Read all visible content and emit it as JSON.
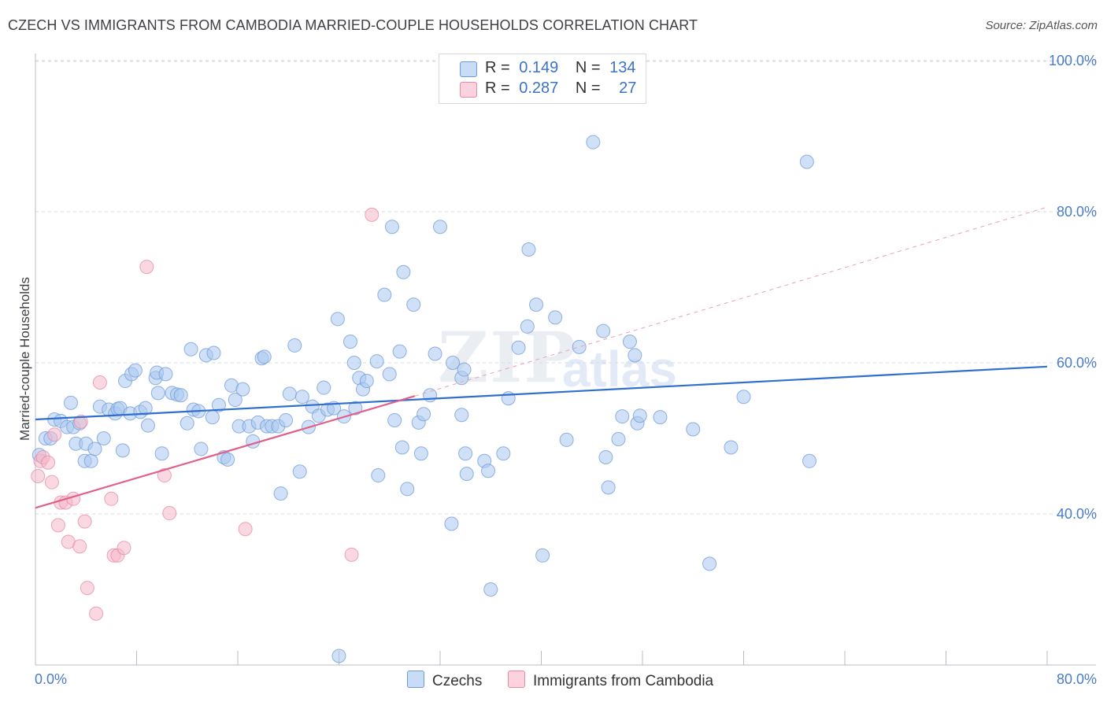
{
  "title": "CZECH VS IMMIGRANTS FROM CAMBODIA MARRIED-COUPLE HOUSEHOLDS CORRELATION CHART",
  "source": "Source: ZipAtlas.com",
  "watermark": {
    "zip": "ZIP",
    "atlas": "atlas"
  },
  "legend": {
    "rows": [
      {
        "r_label": "R =",
        "r_value": "0.149",
        "n_label": "N =",
        "n_value": "134",
        "color": "#aac8f0"
      },
      {
        "r_label": "R =",
        "r_value": "0.287",
        "n_label": "N =",
        "n_value": "27",
        "color": "#f5b8c8"
      }
    ]
  },
  "bottom_legend": [
    {
      "label": "Czechs",
      "color": "#aac8f0"
    },
    {
      "label": "Immigrants from Cambodia",
      "color": "#f5b8c8"
    }
  ],
  "chart_data": {
    "type": "scatter",
    "title": "CZECH VS IMMIGRANTS FROM CAMBODIA MARRIED-COUPLE HOUSEHOLDS CORRELATION CHART",
    "xlabel": "",
    "ylabel": "Married-couple Households",
    "xlim": [
      0,
      80
    ],
    "ylim": [
      20,
      102
    ],
    "x_tick_labels": {
      "min": "0.0%",
      "max": "80.0%"
    },
    "y_ticks": [
      {
        "value": 40,
        "label": "40.0%"
      },
      {
        "value": 60,
        "label": "60.0%"
      },
      {
        "value": 80,
        "label": "80.0%"
      },
      {
        "value": 100,
        "label": "100.0%"
      }
    ],
    "x_gridlines": [
      8,
      16,
      24,
      32,
      40,
      48,
      56,
      64,
      72,
      80
    ],
    "series": [
      {
        "name": "Czechs",
        "color": "#aac8f0",
        "stroke": "#6f9ad8",
        "trend": {
          "x0": 0,
          "y0": 52.5,
          "x1": 80,
          "y1": 59.5,
          "color": "#2f6fd0"
        },
        "points": [
          [
            0.3,
            47.8
          ],
          [
            0.8,
            50.0
          ],
          [
            1.2,
            50.0
          ],
          [
            1.5,
            52.5
          ],
          [
            2.0,
            52.3
          ],
          [
            2.5,
            51.5
          ],
          [
            2.8,
            54.7
          ],
          [
            3.0,
            51.5
          ],
          [
            3.2,
            49.3
          ],
          [
            3.5,
            52.0
          ],
          [
            3.9,
            47.0
          ],
          [
            4.0,
            49.3
          ],
          [
            4.4,
            47.0
          ],
          [
            4.7,
            48.6
          ],
          [
            5.1,
            54.2
          ],
          [
            5.4,
            50.0
          ],
          [
            5.8,
            53.8
          ],
          [
            6.3,
            53.3
          ],
          [
            6.5,
            53.9
          ],
          [
            6.7,
            54.0
          ],
          [
            6.9,
            48.4
          ],
          [
            7.1,
            57.6
          ],
          [
            7.5,
            53.3
          ],
          [
            7.6,
            58.5
          ],
          [
            7.9,
            59.0
          ],
          [
            8.3,
            53.5
          ],
          [
            8.7,
            54.0
          ],
          [
            8.9,
            51.7
          ],
          [
            9.5,
            58.0
          ],
          [
            9.6,
            58.7
          ],
          [
            9.7,
            56.0
          ],
          [
            10.0,
            48.0
          ],
          [
            10.3,
            58.5
          ],
          [
            10.8,
            56.0
          ],
          [
            11.2,
            55.8
          ],
          [
            11.5,
            55.7
          ],
          [
            12.0,
            52.0
          ],
          [
            12.3,
            61.8
          ],
          [
            12.5,
            53.8
          ],
          [
            12.9,
            53.6
          ],
          [
            13.1,
            48.6
          ],
          [
            13.5,
            61.0
          ],
          [
            14.0,
            52.8
          ],
          [
            14.1,
            61.3
          ],
          [
            14.5,
            54.4
          ],
          [
            14.9,
            47.5
          ],
          [
            15.2,
            47.2
          ],
          [
            15.5,
            57.0
          ],
          [
            15.8,
            55.1
          ],
          [
            16.1,
            51.6
          ],
          [
            16.4,
            56.5
          ],
          [
            16.9,
            51.6
          ],
          [
            17.2,
            49.6
          ],
          [
            17.6,
            52.1
          ],
          [
            17.9,
            60.6
          ],
          [
            18.1,
            60.8
          ],
          [
            18.3,
            51.6
          ],
          [
            18.7,
            51.6
          ],
          [
            19.2,
            51.6
          ],
          [
            19.4,
            42.7
          ],
          [
            19.8,
            52.4
          ],
          [
            20.1,
            55.9
          ],
          [
            20.5,
            62.3
          ],
          [
            20.9,
            45.6
          ],
          [
            21.1,
            55.5
          ],
          [
            21.6,
            51.5
          ],
          [
            21.9,
            54.2
          ],
          [
            22.4,
            53.0
          ],
          [
            22.8,
            56.7
          ],
          [
            23.1,
            53.8
          ],
          [
            23.6,
            54.0
          ],
          [
            24.0,
            21.2
          ],
          [
            23.9,
            65.8
          ],
          [
            24.4,
            52.9
          ],
          [
            24.9,
            62.8
          ],
          [
            25.2,
            60.0
          ],
          [
            25.3,
            54.0
          ],
          [
            25.6,
            58.0
          ],
          [
            25.9,
            56.5
          ],
          [
            26.2,
            57.6
          ],
          [
            27.0,
            60.2
          ],
          [
            27.1,
            45.1
          ],
          [
            27.6,
            69.0
          ],
          [
            28.0,
            58.5
          ],
          [
            28.2,
            78.0
          ],
          [
            28.4,
            52.4
          ],
          [
            28.8,
            61.5
          ],
          [
            29.0,
            48.8
          ],
          [
            29.1,
            72.0
          ],
          [
            29.4,
            43.3
          ],
          [
            29.9,
            67.7
          ],
          [
            30.3,
            52.1
          ],
          [
            30.5,
            48.0
          ],
          [
            30.7,
            53.2
          ],
          [
            31.2,
            55.7
          ],
          [
            31.6,
            61.2
          ],
          [
            32.0,
            78.0
          ],
          [
            32.9,
            38.7
          ],
          [
            33.0,
            60.0
          ],
          [
            33.7,
            53.1
          ],
          [
            33.7,
            58.0
          ],
          [
            33.9,
            59.1
          ],
          [
            34.0,
            48.0
          ],
          [
            34.1,
            45.3
          ],
          [
            35.5,
            47.0
          ],
          [
            35.8,
            45.7
          ],
          [
            36.0,
            30.0
          ],
          [
            37.0,
            48.0
          ],
          [
            37.4,
            55.3
          ],
          [
            38.2,
            62.0
          ],
          [
            38.9,
            64.8
          ],
          [
            39.0,
            75.0
          ],
          [
            39.6,
            67.7
          ],
          [
            40.1,
            34.5
          ],
          [
            41.1,
            66.0
          ],
          [
            42.0,
            49.8
          ],
          [
            43.0,
            62.1
          ],
          [
            44.1,
            89.2
          ],
          [
            44.9,
            64.2
          ],
          [
            45.1,
            47.5
          ],
          [
            45.3,
            43.5
          ],
          [
            46.1,
            49.9
          ],
          [
            46.4,
            52.9
          ],
          [
            47.0,
            62.8
          ],
          [
            47.4,
            61.0
          ],
          [
            47.6,
            52.0
          ],
          [
            47.8,
            53.0
          ],
          [
            49.4,
            52.8
          ],
          [
            52.0,
            51.2
          ],
          [
            53.3,
            33.4
          ],
          [
            55.0,
            48.8
          ],
          [
            56.0,
            55.5
          ],
          [
            61.0,
            86.6
          ],
          [
            61.2,
            47.0
          ]
        ]
      },
      {
        "name": "Immigrants from Cambodia",
        "color": "#f5b8c8",
        "stroke": "#e48aa4",
        "trend": {
          "x0": 0,
          "y0": 40.8,
          "x1": 30,
          "y1": 55.6,
          "color": "#e0608a",
          "dash_x1": 80,
          "dash_y1": 80.6
        },
        "points": [
          [
            0.2,
            45.0
          ],
          [
            0.4,
            47.0
          ],
          [
            0.6,
            47.5
          ],
          [
            1.0,
            46.8
          ],
          [
            1.3,
            44.2
          ],
          [
            1.5,
            50.5
          ],
          [
            1.8,
            38.5
          ],
          [
            2.0,
            41.5
          ],
          [
            2.4,
            41.5
          ],
          [
            2.6,
            36.3
          ],
          [
            3.0,
            42.0
          ],
          [
            3.5,
            35.7
          ],
          [
            3.6,
            52.2
          ],
          [
            3.9,
            39.0
          ],
          [
            4.1,
            30.2
          ],
          [
            4.8,
            26.8
          ],
          [
            5.1,
            57.4
          ],
          [
            6.0,
            42.0
          ],
          [
            6.2,
            34.5
          ],
          [
            6.5,
            34.5
          ],
          [
            7.0,
            35.5
          ],
          [
            8.8,
            72.7
          ],
          [
            10.2,
            45.1
          ],
          [
            10.6,
            40.1
          ],
          [
            16.6,
            38.0
          ],
          [
            25.0,
            34.6
          ],
          [
            26.6,
            79.6
          ]
        ]
      }
    ]
  }
}
